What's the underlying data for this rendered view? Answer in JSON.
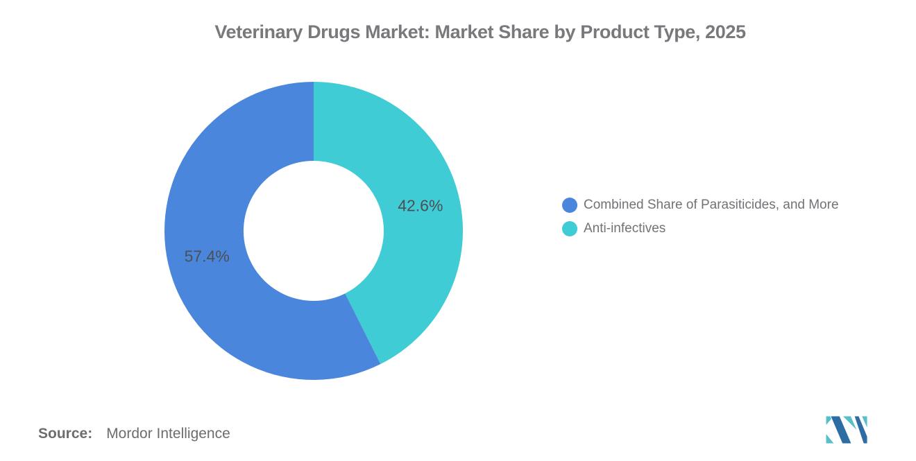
{
  "page": {
    "background": "#ffffff"
  },
  "chart_data": {
    "type": "pie",
    "donut": true,
    "title": "Veterinary Drugs Market: Market Share by Product Type, 2025",
    "series": [
      {
        "name": "Combined Share of Parasiticides, and More",
        "value": 57.4,
        "color": "#4a87dc"
      },
      {
        "name": "Anti-infectives",
        "value": 42.6,
        "color": "#3fccd4"
      }
    ],
    "labels": [
      "57.4%",
      "42.6%"
    ],
    "label_format": "{value}%",
    "start_position": "top",
    "direction": "first series counterclockwise from top (last series fills clockwise side)",
    "inner_radius_ratio": 0.47,
    "label_color": "#4d4f54",
    "title_color": "#77797c",
    "legend_position": "right",
    "legend_text_color": "#707275",
    "grid": false
  },
  "footer": {
    "source_label": "Source:",
    "source_value": "Mordor Intelligence",
    "logo_name": "Mordor Intelligence",
    "logo_blue": "#2e6da4",
    "logo_teal": "#55c0c7"
  }
}
